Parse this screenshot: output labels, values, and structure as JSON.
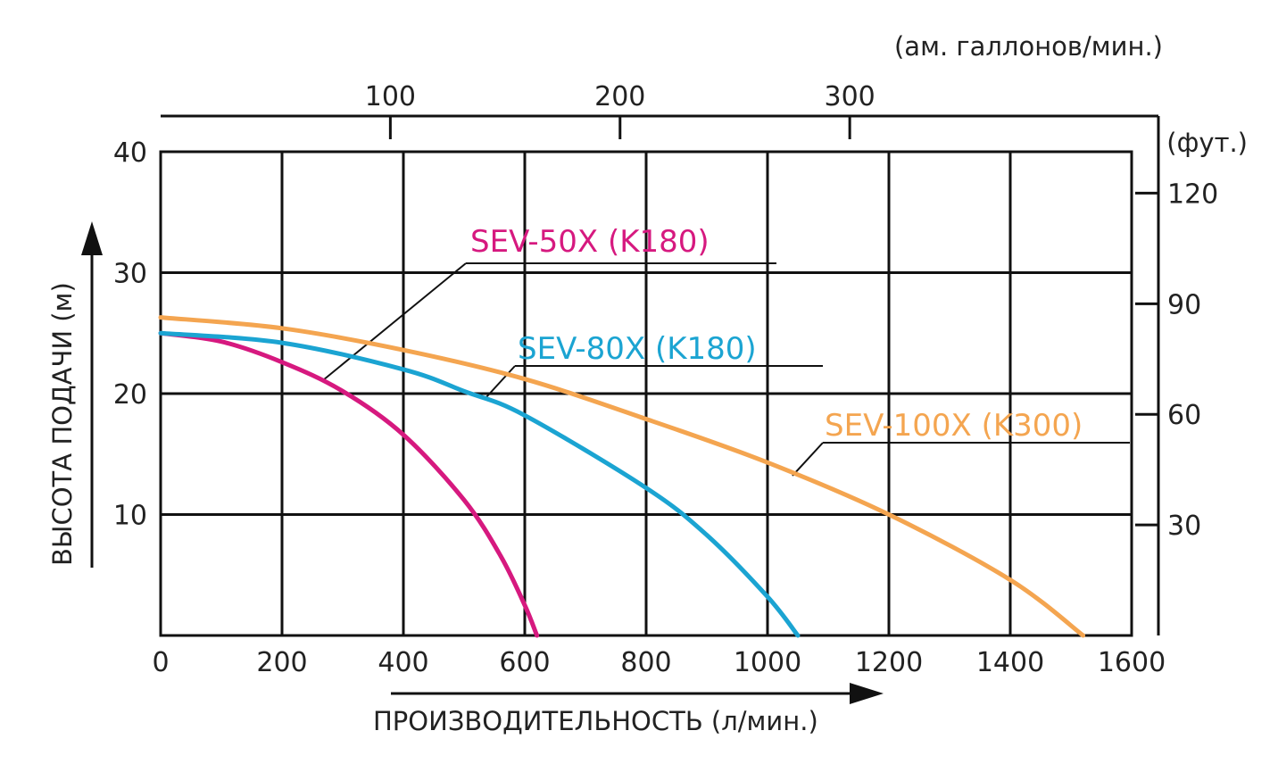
{
  "chart_data": {
    "type": "line",
    "title": "",
    "xlabel": "ПРОИЗВОДИТЕЛЬНОСТЬ (л/мин.)",
    "ylabel": "ВЫСОТА ПОДАЧИ (м)",
    "xlim": [
      0,
      1600
    ],
    "ylim": [
      0,
      40
    ],
    "x_ticks": [
      "0",
      "200",
      "400",
      "600",
      "800",
      "1000",
      "1200",
      "1400",
      "1600"
    ],
    "y_ticks": [
      "10",
      "20",
      "30",
      "40"
    ],
    "grid": true,
    "secondary_x": {
      "label": "(ам. галлонов/мин.)",
      "ticks": [
        "100",
        "200",
        "300"
      ],
      "values": [
        100,
        200,
        300
      ],
      "factor_l_per_unit": 3.785
    },
    "secondary_y": {
      "label": "(фут.)",
      "ticks": [
        "30",
        "60",
        "90",
        "120"
      ],
      "values": [
        30,
        60,
        90,
        120
      ],
      "factor_unit_per_m": 3.281
    },
    "series": [
      {
        "name": "SEV-50X (K180)",
        "color": "#d6197f",
        "x": [
          0,
          100,
          200,
          300,
          400,
          500,
          560,
          600,
          620
        ],
        "y": [
          25,
          24.3,
          22.6,
          20.2,
          16.6,
          11.2,
          6.6,
          2.5,
          0
        ]
      },
      {
        "name": "SEV-80X (K180)",
        "color": "#1ba4d2",
        "x": [
          0,
          200,
          400,
          500,
          600,
          800,
          900,
          1000,
          1050
        ],
        "y": [
          25,
          24.2,
          22.0,
          20.2,
          18.2,
          12.2,
          8.3,
          3.2,
          0
        ]
      },
      {
        "name": "SEV-100X (K300)",
        "color": "#f4a550",
        "x": [
          0,
          200,
          400,
          600,
          800,
          1000,
          1200,
          1400,
          1520
        ],
        "y": [
          26.3,
          25.4,
          23.6,
          21.2,
          17.9,
          14.3,
          10,
          4.6,
          0
        ]
      }
    ]
  }
}
